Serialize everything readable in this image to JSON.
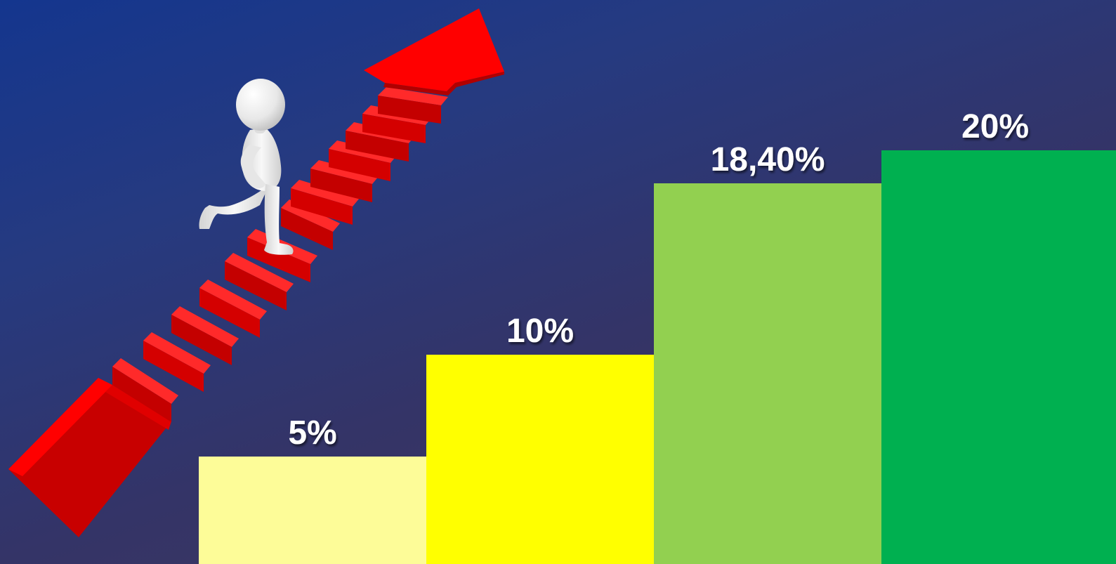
{
  "chart_data": {
    "type": "bar",
    "categories": [
      "",
      "",
      "",
      ""
    ],
    "values": [
      5,
      10,
      18.4,
      20
    ],
    "value_labels": [
      "5%",
      "10%",
      "18,40%",
      "20%"
    ],
    "colors": [
      "#fdfc98",
      "#ffff00",
      "#92d050",
      "#00b050"
    ],
    "title": "",
    "xlabel": "",
    "ylabel": "",
    "ylim": [
      0,
      26
    ],
    "grid": false,
    "legend": "none"
  },
  "illustration": {
    "figure_icon": "figure-climbing-stairs-icon",
    "staircase_icon": "red-staircase-arrow-icon",
    "stair_color": "#ff0000",
    "figure_color": "#f2f2f2"
  },
  "background": {
    "gradient_start": "#14368e",
    "gradient_end": "#453a5a"
  }
}
